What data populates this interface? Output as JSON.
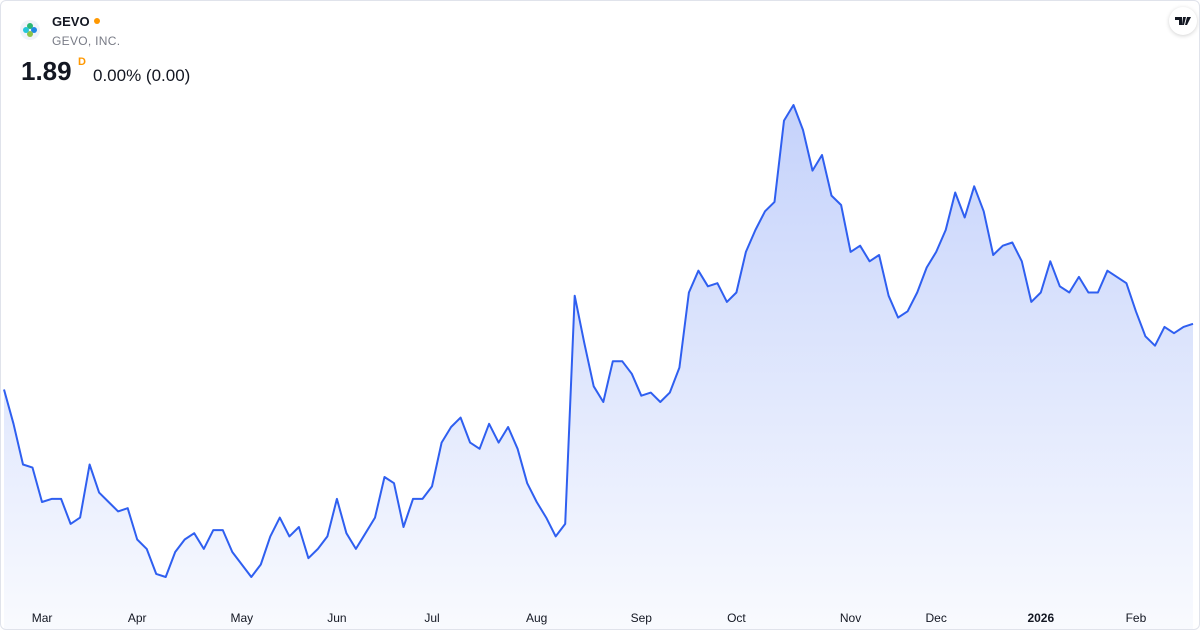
{
  "header": {
    "symbol": "GEVO",
    "name": "GEVO, INC.",
    "price": "1.89",
    "interval": "D",
    "change": "0.00% (0.00)"
  },
  "chart_data": {
    "type": "area",
    "color": "#2f5ff0",
    "series": [
      {
        "name": "GEVO",
        "color": "#2f5ff0",
        "values": [
          1.68,
          1.57,
          1.44,
          1.43,
          1.32,
          1.33,
          1.33,
          1.25,
          1.27,
          1.44,
          1.35,
          1.32,
          1.29,
          1.3,
          1.2,
          1.17,
          1.09,
          1.08,
          1.16,
          1.2,
          1.22,
          1.17,
          1.23,
          1.23,
          1.16,
          1.12,
          1.08,
          1.12,
          1.21,
          1.27,
          1.21,
          1.24,
          1.14,
          1.17,
          1.21,
          1.33,
          1.22,
          1.17,
          1.22,
          1.27,
          1.4,
          1.38,
          1.24,
          1.33,
          1.33,
          1.37,
          1.51,
          1.56,
          1.59,
          1.51,
          1.49,
          1.57,
          1.51,
          1.56,
          1.49,
          1.38,
          1.32,
          1.27,
          1.21,
          1.25,
          1.98,
          1.83,
          1.69,
          1.64,
          1.77,
          1.77,
          1.73,
          1.66,
          1.67,
          1.64,
          1.67,
          1.75,
          1.99,
          2.06,
          2.01,
          2.02,
          1.96,
          1.99,
          2.12,
          2.19,
          2.25,
          2.28,
          2.54,
          2.59,
          2.51,
          2.38,
          2.43,
          2.3,
          2.27,
          2.12,
          2.14,
          2.09,
          2.11,
          1.98,
          1.91,
          1.93,
          1.99,
          2.07,
          2.12,
          2.19,
          2.31,
          2.23,
          2.33,
          2.25,
          2.11,
          2.14,
          2.15,
          2.09,
          1.96,
          1.99,
          2.09,
          2.01,
          1.99,
          2.04,
          1.99,
          1.99,
          2.06,
          2.04,
          2.02,
          1.93,
          1.85,
          1.82,
          1.88,
          1.86,
          1.88,
          1.89
        ]
      }
    ],
    "categories": [
      null,
      null,
      null,
      null,
      "Mar",
      null,
      null,
      null,
      null,
      null,
      null,
      null,
      null,
      null,
      "Apr",
      null,
      null,
      null,
      null,
      null,
      null,
      null,
      null,
      null,
      null,
      "May",
      null,
      null,
      null,
      null,
      null,
      null,
      null,
      null,
      null,
      "Jun",
      null,
      null,
      null,
      null,
      null,
      null,
      null,
      null,
      null,
      "Jul",
      null,
      null,
      null,
      null,
      null,
      null,
      null,
      null,
      null,
      null,
      "Aug",
      null,
      null,
      null,
      null,
      null,
      null,
      null,
      null,
      null,
      null,
      "Sep",
      null,
      null,
      null,
      null,
      null,
      null,
      null,
      null,
      null,
      "Oct",
      null,
      null,
      null,
      null,
      null,
      null,
      null,
      null,
      null,
      null,
      null,
      "Nov",
      null,
      null,
      null,
      null,
      null,
      null,
      null,
      null,
      "Dec",
      null,
      null,
      null,
      null,
      null,
      null,
      null,
      null,
      null,
      null,
      "2026",
      null,
      null,
      null,
      null,
      null,
      null,
      null,
      null,
      null,
      "Feb",
      null,
      null,
      null,
      null,
      null,
      null
    ]
  }
}
